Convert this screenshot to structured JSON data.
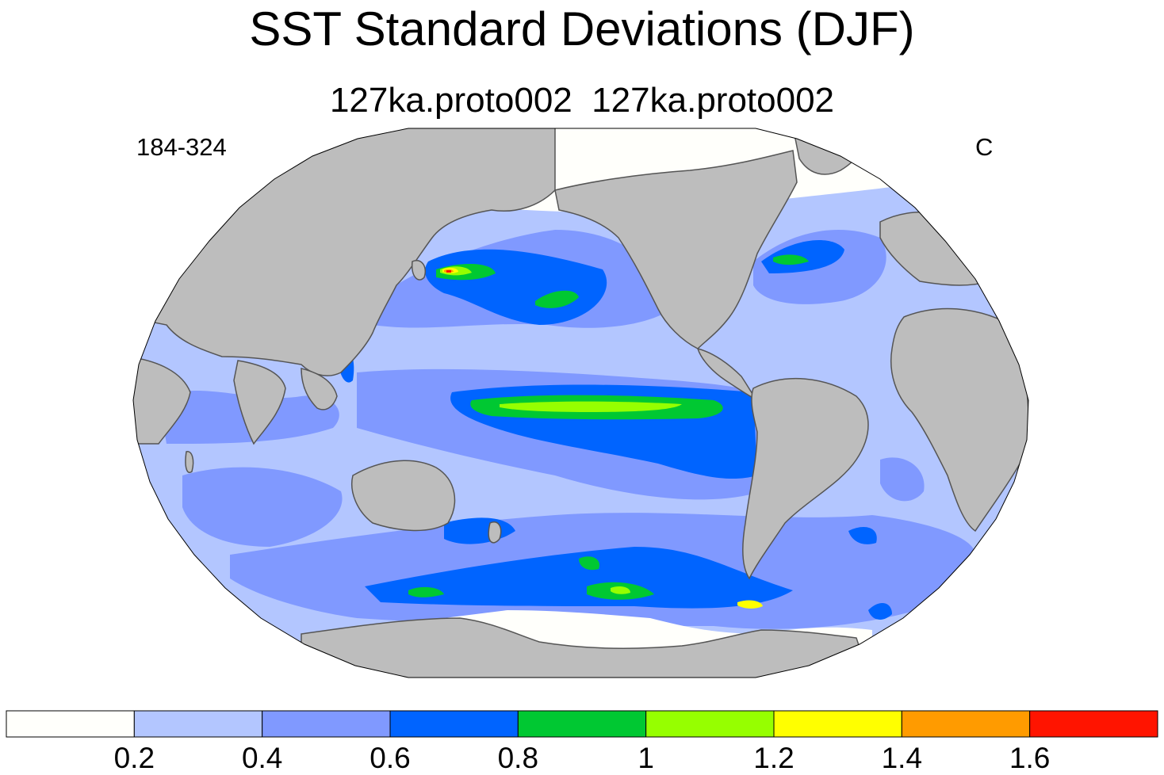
{
  "figure": {
    "title": "SST Standard Deviations (DJF)",
    "subtitle": "127ka.proto002  127ka.proto002",
    "left_label": "184-324",
    "right_label": "C"
  },
  "colors": {
    "land": "#bdbdbd",
    "coast": "#555555",
    "ocean_base": "#b3c6ff"
  },
  "colorbar": {
    "boundaries": [
      "0.2",
      "0.4",
      "0.6",
      "0.8",
      "1",
      "1.2",
      "1.4",
      "1.6"
    ],
    "colors": [
      "#fffffb",
      "#b3c6ff",
      "#8099ff",
      "#0064ff",
      "#00c832",
      "#96ff00",
      "#ffff00",
      "#ff9b00",
      "#ff1400"
    ]
  }
}
